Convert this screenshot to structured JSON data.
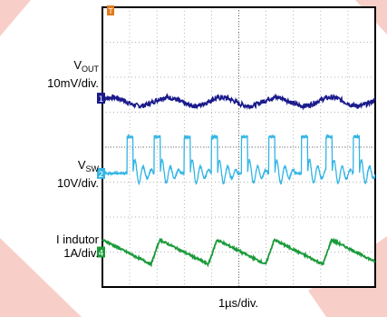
{
  "chart_data": {
    "type": "line",
    "title": "",
    "xlabel": "1µs/div.",
    "xunit_per_div": "1µs",
    "grid": true,
    "divisions": {
      "x": 10,
      "y": 8
    },
    "trigger_marker": "T",
    "series": [
      {
        "name_main": "V",
        "name_sub": "OUT",
        "scale": "10mV/div.",
        "marker": "1",
        "color": "#1a1a8c",
        "shape": "noisy ripple",
        "ripple_period_us": 2.0,
        "offset_div": 5.3,
        "amplitude_div": 0.12
      },
      {
        "name_main": "V",
        "name_sub": "SW",
        "scale": "10V/div.",
        "marker": "2",
        "color": "#33b5e5",
        "shape": "switching pulses with ringing",
        "pulse_starts_us": [
          0.9,
          1.9,
          3.0,
          4.0,
          5.1,
          6.1,
          7.3,
          8.2,
          9.2
        ],
        "low_div": 2.9,
        "high_div": 4.3
      },
      {
        "name_main": "I indutor",
        "name_sub": "",
        "scale": "1A/div.",
        "marker": "4",
        "color": "#1a9a3a",
        "shape": "sawtooth ramp",
        "peak_times_us": [
          0.0,
          2.1,
          4.2,
          6.3,
          8.4
        ],
        "offset_div": 1.0,
        "amplitude_div": 0.35
      }
    ]
  }
}
